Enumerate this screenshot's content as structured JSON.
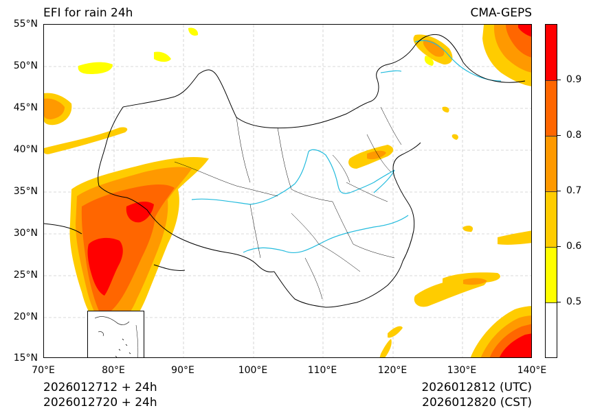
{
  "title_left": "EFI for rain 24h",
  "title_right": "CMA-GEPS",
  "lat_labels": [
    "55°N",
    "50°N",
    "45°N",
    "40°N",
    "35°N",
    "30°N",
    "25°N",
    "20°N",
    "15°N"
  ],
  "lon_labels": [
    "70°E",
    "80°E",
    "90°E",
    "100°E",
    "110°E",
    "120°E",
    "130°E",
    "140°E"
  ],
  "footer_left": [
    "2026012712 + 24h",
    "2026012720 + 24h"
  ],
  "footer_right": [
    "2026012812 (UTC)",
    "2026012820 (CST)"
  ],
  "colorbar": {
    "labels": [
      "0.9",
      "0.8",
      "0.7",
      "0.6",
      "0.5"
    ],
    "colors": [
      "#ff0000",
      "#ff6600",
      "#ff9900",
      "#ffcc00",
      "#ffff00",
      "#ffffff"
    ]
  },
  "colors": {
    "river": "#22bbdd",
    "border": "#000000",
    "grid": "#cccccc"
  }
}
